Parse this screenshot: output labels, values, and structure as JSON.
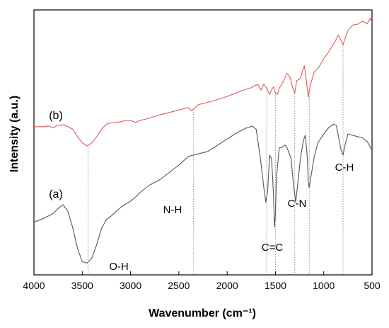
{
  "chart_data": {
    "type": "line",
    "xlabel": "Wavenumber (cm⁻¹)",
    "ylabel": "Intensity (a.u.)",
    "xlim": [
      4000,
      500
    ],
    "x_reversed": true,
    "ylim": [
      0,
      1
    ],
    "y_ticks_shown": false,
    "grid": false,
    "x_ticks": [
      4000,
      3500,
      3000,
      2500,
      2000,
      1500,
      1000,
      500
    ],
    "series": [
      {
        "name": "(a)",
        "color": "#555555",
        "points": [
          [
            4000,
            0.19
          ],
          [
            3900,
            0.205
          ],
          [
            3800,
            0.225
          ],
          [
            3750,
            0.245
          ],
          [
            3700,
            0.26
          ],
          [
            3650,
            0.235
          ],
          [
            3600,
            0.17
          ],
          [
            3550,
            0.085
          ],
          [
            3500,
            0.03
          ],
          [
            3450,
            0.025
          ],
          [
            3400,
            0.045
          ],
          [
            3350,
            0.1
          ],
          [
            3300,
            0.165
          ],
          [
            3250,
            0.2
          ],
          [
            3200,
            0.215
          ],
          [
            3100,
            0.25
          ],
          [
            3000,
            0.275
          ],
          [
            2950,
            0.29
          ],
          [
            2900,
            0.31
          ],
          [
            2800,
            0.34
          ],
          [
            2700,
            0.36
          ],
          [
            2600,
            0.39
          ],
          [
            2500,
            0.42
          ],
          [
            2400,
            0.455
          ],
          [
            2350,
            0.46
          ],
          [
            2300,
            0.465
          ],
          [
            2200,
            0.475
          ],
          [
            2100,
            0.5
          ],
          [
            2000,
            0.525
          ],
          [
            1900,
            0.55
          ],
          [
            1800,
            0.57
          ],
          [
            1740,
            0.577
          ],
          [
            1700,
            0.565
          ],
          [
            1660,
            0.46
          ],
          [
            1620,
            0.33
          ],
          [
            1600,
            0.27
          ],
          [
            1580,
            0.32
          ],
          [
            1560,
            0.46
          ],
          [
            1540,
            0.445
          ],
          [
            1520,
            0.3
          ],
          [
            1510,
            0.17
          ],
          [
            1500,
            0.22
          ],
          [
            1490,
            0.37
          ],
          [
            1460,
            0.49
          ],
          [
            1440,
            0.49
          ],
          [
            1400,
            0.5
          ],
          [
            1380,
            0.49
          ],
          [
            1340,
            0.45
          ],
          [
            1310,
            0.33
          ],
          [
            1290,
            0.27
          ],
          [
            1270,
            0.34
          ],
          [
            1240,
            0.45
          ],
          [
            1210,
            0.52
          ],
          [
            1190,
            0.54
          ],
          [
            1170,
            0.45
          ],
          [
            1160,
            0.35
          ],
          [
            1150,
            0.33
          ],
          [
            1130,
            0.38
          ],
          [
            1100,
            0.45
          ],
          [
            1060,
            0.51
          ],
          [
            1000,
            0.545
          ],
          [
            950,
            0.57
          ],
          [
            900,
            0.585
          ],
          [
            870,
            0.58
          ],
          [
            850,
            0.54
          ],
          [
            820,
            0.48
          ],
          [
            800,
            0.46
          ],
          [
            780,
            0.5
          ],
          [
            750,
            0.545
          ],
          [
            700,
            0.54
          ],
          [
            650,
            0.535
          ],
          [
            600,
            0.53
          ],
          [
            550,
            0.515
          ],
          [
            500,
            0.48
          ]
        ]
      },
      {
        "name": "(b)",
        "color": "#e05a5a",
        "points": [
          [
            4000,
            0.575
          ],
          [
            3900,
            0.575
          ],
          [
            3850,
            0.578
          ],
          [
            3800,
            0.57
          ],
          [
            3760,
            0.58
          ],
          [
            3720,
            0.58
          ],
          [
            3700,
            0.583
          ],
          [
            3650,
            0.575
          ],
          [
            3600,
            0.565
          ],
          [
            3550,
            0.535
          ],
          [
            3500,
            0.51
          ],
          [
            3450,
            0.497
          ],
          [
            3400,
            0.51
          ],
          [
            3350,
            0.535
          ],
          [
            3300,
            0.565
          ],
          [
            3250,
            0.585
          ],
          [
            3200,
            0.59
          ],
          [
            3100,
            0.595
          ],
          [
            3050,
            0.6
          ],
          [
            3000,
            0.6
          ],
          [
            2950,
            0.592
          ],
          [
            2900,
            0.6
          ],
          [
            2800,
            0.61
          ],
          [
            2700,
            0.622
          ],
          [
            2600,
            0.632
          ],
          [
            2500,
            0.642
          ],
          [
            2400,
            0.652
          ],
          [
            2370,
            0.64
          ],
          [
            2350,
            0.645
          ],
          [
            2300,
            0.663
          ],
          [
            2200,
            0.673
          ],
          [
            2100,
            0.684
          ],
          [
            2000,
            0.697
          ],
          [
            1900,
            0.712
          ],
          [
            1800,
            0.726
          ],
          [
            1760,
            0.73
          ],
          [
            1720,
            0.74
          ],
          [
            1680,
            0.745
          ],
          [
            1650,
            0.722
          ],
          [
            1620,
            0.746
          ],
          [
            1590,
            0.73
          ],
          [
            1560,
            0.705
          ],
          [
            1540,
            0.725
          ],
          [
            1520,
            0.735
          ],
          [
            1500,
            0.712
          ],
          [
            1480,
            0.705
          ],
          [
            1460,
            0.73
          ],
          [
            1420,
            0.756
          ],
          [
            1380,
            0.79
          ],
          [
            1350,
            0.775
          ],
          [
            1320,
            0.73
          ],
          [
            1300,
            0.71
          ],
          [
            1280,
            0.76
          ],
          [
            1240,
            0.77
          ],
          [
            1220,
            0.8
          ],
          [
            1200,
            0.82
          ],
          [
            1180,
            0.76
          ],
          [
            1160,
            0.695
          ],
          [
            1140,
            0.74
          ],
          [
            1100,
            0.795
          ],
          [
            1050,
            0.815
          ],
          [
            1000,
            0.85
          ],
          [
            950,
            0.875
          ],
          [
            920,
            0.895
          ],
          [
            880,
            0.92
          ],
          [
            850,
            0.945
          ],
          [
            820,
            0.922
          ],
          [
            800,
            0.905
          ],
          [
            780,
            0.93
          ],
          [
            750,
            0.962
          ],
          [
            700,
            0.985
          ],
          [
            650,
            0.988
          ],
          [
            600,
            1.0
          ],
          [
            550,
            0.99
          ],
          [
            520,
            1.012
          ],
          [
            500,
            0.995
          ]
        ]
      }
    ],
    "annotations": [
      {
        "text": "O-H",
        "x": 3440
      },
      {
        "text": "N-H",
        "x": 2350
      },
      {
        "text": "C=C",
        "x": 1590
      },
      {
        "text": "C=C",
        "x": 1500
      },
      {
        "text": "C-N",
        "x": 1300
      },
      {
        "text": "C-N",
        "x": 1150
      },
      {
        "text": "C-H",
        "x": 800
      }
    ],
    "label_annotations": [
      {
        "text": "O-H",
        "x": 3440
      },
      {
        "text": "N-H",
        "x": 2350
      },
      {
        "text": "C=C",
        "x": 1545
      },
      {
        "text": "C-N",
        "x": 1225
      },
      {
        "text": "C-H",
        "x": 800
      }
    ]
  }
}
